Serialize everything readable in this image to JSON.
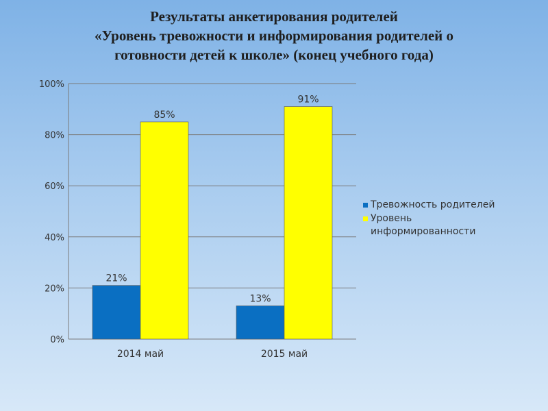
{
  "title_lines": [
    "Результаты  анкетирования родителей",
    "«Уровень тревожности и информирования  родителей о",
    "готовности детей к школе»  (конец учебного года)"
  ],
  "chart_data": {
    "type": "bar",
    "categories": [
      "2014 май",
      "2015 май"
    ],
    "series": [
      {
        "name": "Тревожность родителей",
        "values": [
          21,
          13
        ],
        "labels": [
          "21%",
          "13%"
        ],
        "color": "#0a6fc2"
      },
      {
        "name": "Уровень информированности",
        "values": [
          85,
          91
        ],
        "labels": [
          "85%",
          "91%"
        ],
        "color": "#ffff00"
      }
    ],
    "ylim": [
      0,
      100
    ],
    "yticks": [
      0,
      20,
      40,
      60,
      80,
      100
    ],
    "ytick_labels": [
      "0%",
      "20%",
      "40%",
      "60%",
      "80%",
      "100%"
    ],
    "grid": true,
    "legend_position": "right"
  },
  "legend": {
    "items": [
      {
        "lines": [
          "Тревожность родителей"
        ],
        "color": "#0a6fc2"
      },
      {
        "lines": [
          "Уровень",
          "информированности"
        ],
        "color": "#ffff00"
      }
    ]
  }
}
